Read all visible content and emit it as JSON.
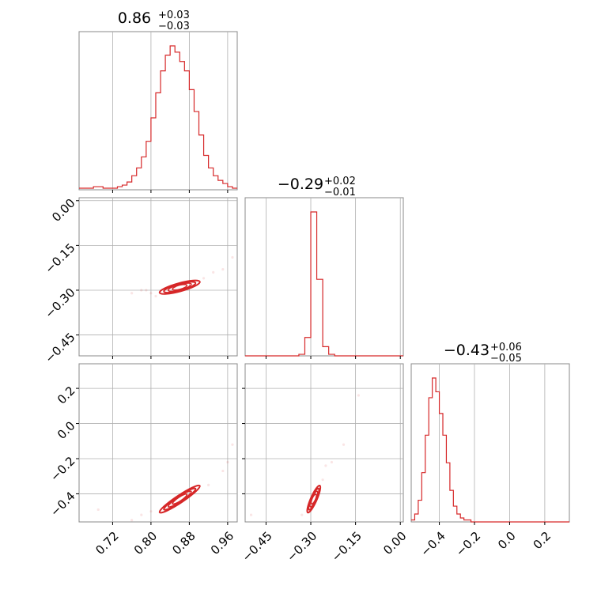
{
  "chart_data": {
    "type": "corner",
    "color": "#d62728",
    "grid": true,
    "params": [
      {
        "range": [
          0.65,
          0.98
        ],
        "ticks": [
          0.72,
          0.8,
          0.88,
          0.96
        ],
        "tick_labels": [
          "0.72",
          "0.80",
          "0.88",
          "0.96"
        ],
        "title": {
          "value": "0.86",
          "plus": "+0.03",
          "minus": "−0.03"
        },
        "hist_bins": [
          0.65,
          0.66,
          0.67,
          0.68,
          0.69,
          0.7,
          0.71,
          0.72,
          0.73,
          0.74,
          0.75,
          0.76,
          0.77,
          0.78,
          0.79,
          0.8,
          0.81,
          0.82,
          0.83,
          0.84,
          0.85,
          0.86,
          0.87,
          0.88,
          0.89,
          0.9,
          0.91,
          0.92,
          0.93,
          0.94,
          0.95,
          0.96,
          0.97,
          0.98
        ],
        "hist_counts": [
          1,
          1,
          1,
          2,
          2,
          1,
          1,
          1,
          2,
          3,
          5,
          9,
          14,
          21,
          31,
          46,
          62,
          76,
          86,
          92,
          88,
          82,
          76,
          64,
          50,
          35,
          22,
          14,
          9,
          6,
          4,
          2,
          1
        ]
      },
      {
        "range": [
          -0.52,
          0.01
        ],
        "ticks": [
          0.0,
          -0.15,
          -0.3,
          -0.45
        ],
        "tick_labels": [
          "0.00",
          "−0.15",
          "−0.30",
          "−0.45"
        ],
        "title": {
          "value": "−0.29",
          "plus": "+0.02",
          "minus": "−0.01"
        },
        "hist_bins": [
          -0.52,
          -0.5,
          -0.48,
          -0.46,
          -0.44,
          -0.42,
          -0.4,
          -0.38,
          -0.36,
          -0.34,
          -0.32,
          -0.3,
          -0.28,
          -0.26,
          -0.24,
          -0.22,
          -0.2,
          -0.18,
          -0.16,
          -0.14,
          -0.12,
          -0.1,
          -0.08,
          -0.06,
          -0.04,
          -0.02,
          0.0,
          0.01
        ],
        "hist_counts": [
          0,
          0,
          0,
          0,
          0,
          0,
          0,
          0,
          0,
          1,
          12,
          94,
          50,
          6,
          1,
          0,
          0,
          0,
          0,
          0,
          0,
          0,
          0,
          0,
          0,
          0,
          0
        ]
      },
      {
        "range": [
          -0.56,
          0.34
        ],
        "ticks": [
          0.2,
          0.0,
          -0.2,
          -0.4
        ],
        "tick_labels": [
          "0.2",
          "0.0",
          "−0.2",
          "−0.4"
        ],
        "title": {
          "value": "−0.43",
          "plus": "+0.06",
          "minus": "−0.05"
        },
        "hist_bins": [
          -0.56,
          -0.54,
          -0.52,
          -0.5,
          -0.48,
          -0.46,
          -0.44,
          -0.42,
          -0.4,
          -0.38,
          -0.36,
          -0.34,
          -0.32,
          -0.3,
          -0.28,
          -0.26,
          -0.24,
          -0.22,
          -0.2,
          -0.18,
          -0.16,
          -0.14,
          -0.12,
          -0.1,
          -0.08,
          -0.06,
          -0.04,
          -0.02,
          0.0,
          0.02,
          0.04,
          0.06,
          0.08,
          0.1,
          0.12,
          0.14,
          0.16,
          0.18,
          0.2,
          0.22,
          0.24,
          0.26,
          0.28,
          0.3,
          0.32,
          0.34
        ],
        "hist_counts": [
          1,
          4,
          11,
          25,
          44,
          63,
          73,
          66,
          55,
          44,
          30,
          16,
          8,
          4,
          2,
          1,
          1,
          0,
          0,
          0,
          0,
          0,
          0,
          0,
          0,
          0,
          0,
          0,
          0,
          0,
          0,
          0,
          0,
          0,
          0,
          0,
          0,
          0,
          0,
          0,
          0,
          0,
          0,
          0,
          0
        ]
      }
    ],
    "pairs": [
      {
        "row": 1,
        "col": 0,
        "center": [
          0.86,
          -0.29
        ],
        "sigma": [
          0.03,
          0.015
        ],
        "rho": 0.85,
        "levels": [
          1.0,
          1.6,
          2.2,
          2.8
        ],
        "samples": [
          [
            0.8,
            -0.31
          ],
          [
            0.79,
            -0.3
          ],
          [
            0.81,
            -0.32
          ],
          [
            0.83,
            -0.31
          ],
          [
            0.85,
            -0.29
          ],
          [
            0.87,
            -0.28
          ],
          [
            0.89,
            -0.27
          ],
          [
            0.91,
            -0.26
          ],
          [
            0.93,
            -0.24
          ],
          [
            0.95,
            -0.23
          ],
          [
            0.97,
            -0.19
          ],
          [
            0.78,
            -0.3
          ],
          [
            0.76,
            -0.31
          ]
        ]
      },
      {
        "row": 2,
        "col": 0,
        "center": [
          0.86,
          -0.43
        ],
        "sigma": [
          0.03,
          0.055
        ],
        "rho": 0.97,
        "levels": [
          1.0,
          1.6,
          2.2,
          2.8
        ],
        "samples": [
          [
            0.69,
            -0.49
          ],
          [
            0.76,
            -0.55
          ],
          [
            0.78,
            -0.52
          ],
          [
            0.8,
            -0.5
          ],
          [
            0.84,
            -0.46
          ],
          [
            0.88,
            -0.41
          ],
          [
            0.92,
            -0.35
          ],
          [
            0.95,
            -0.27
          ],
          [
            0.96,
            -0.22
          ],
          [
            0.97,
            -0.12
          ]
        ]
      },
      {
        "row": 2,
        "col": 1,
        "center": [
          -0.29,
          -0.43
        ],
        "sigma": [
          0.015,
          0.055
        ],
        "rho": 0.93,
        "levels": [
          1.0,
          1.6,
          2.2,
          2.8
        ],
        "samples": [
          [
            -0.33,
            -0.52
          ],
          [
            -0.31,
            -0.49
          ],
          [
            -0.28,
            -0.38
          ],
          [
            -0.26,
            -0.32
          ],
          [
            -0.25,
            -0.24
          ],
          [
            -0.23,
            -0.22
          ],
          [
            -0.19,
            -0.12
          ],
          [
            -0.14,
            0.16
          ],
          [
            -0.5,
            -0.52
          ]
        ]
      }
    ]
  }
}
